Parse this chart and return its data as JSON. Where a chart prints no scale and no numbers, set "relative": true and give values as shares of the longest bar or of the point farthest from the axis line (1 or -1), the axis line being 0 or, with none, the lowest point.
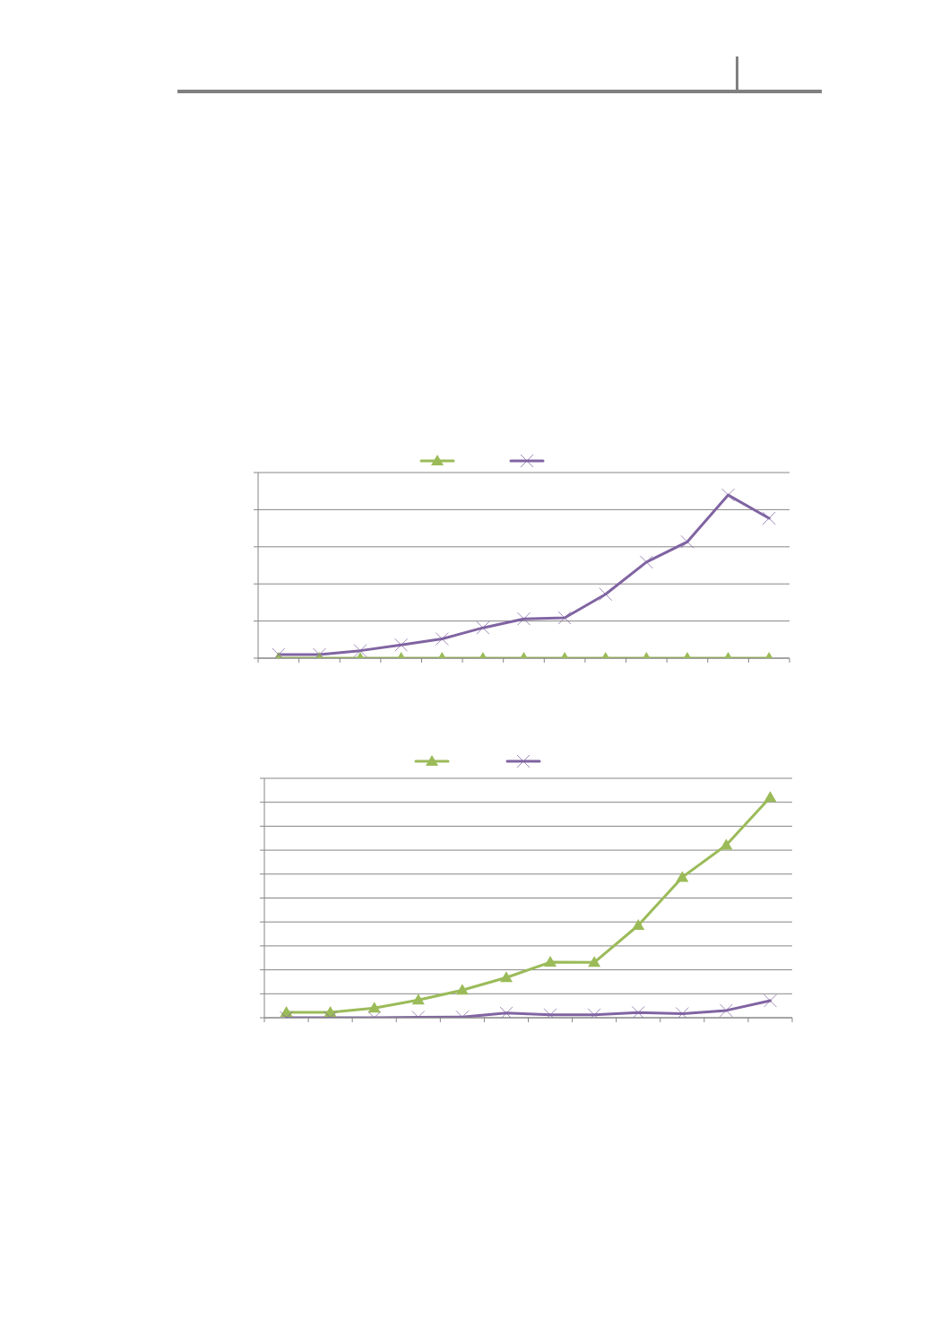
{
  "chart_data": [
    {
      "type": "line",
      "relative": true,
      "categories": [
        null,
        null,
        null,
        null,
        null,
        null,
        null,
        null,
        null,
        null,
        null,
        null,
        null
      ],
      "series": [
        {
          "color": "#9bbb59",
          "marker": "triangle",
          "values": [
            0,
            0,
            0,
            0,
            0,
            0,
            0,
            0,
            0,
            0,
            0,
            0,
            0
          ]
        },
        {
          "color": "#8064a2",
          "marker": "cross",
          "values": [
            0.022,
            0.022,
            0.046,
            0.081,
            0.118,
            0.186,
            0.241,
            0.247,
            0.392,
            0.589,
            0.713,
            1,
            0.858
          ]
        }
      ],
      "grid": "y",
      "tick_labels": false,
      "line_style": "solid"
    },
    {
      "type": "line",
      "relative": true,
      "categories": [
        null,
        null,
        null,
        null,
        null,
        null,
        null,
        null,
        null,
        null,
        null,
        null
      ],
      "series": [
        {
          "color": "#9bbb59",
          "marker": "triangle",
          "values": [
            0.024,
            0.024,
            0.044,
            0.08,
            0.125,
            0.182,
            0.252,
            0.251,
            0.419,
            0.637,
            0.783,
            1
          ]
        },
        {
          "color": "#8064a2",
          "marker": "cross",
          "values": [
            0,
            0,
            0,
            0.002,
            0.003,
            0.021,
            0.013,
            0.013,
            0.023,
            0.018,
            0.033,
            0.077
          ]
        }
      ],
      "grid": "y",
      "tick_labels": false,
      "line_style": "solid"
    }
  ]
}
